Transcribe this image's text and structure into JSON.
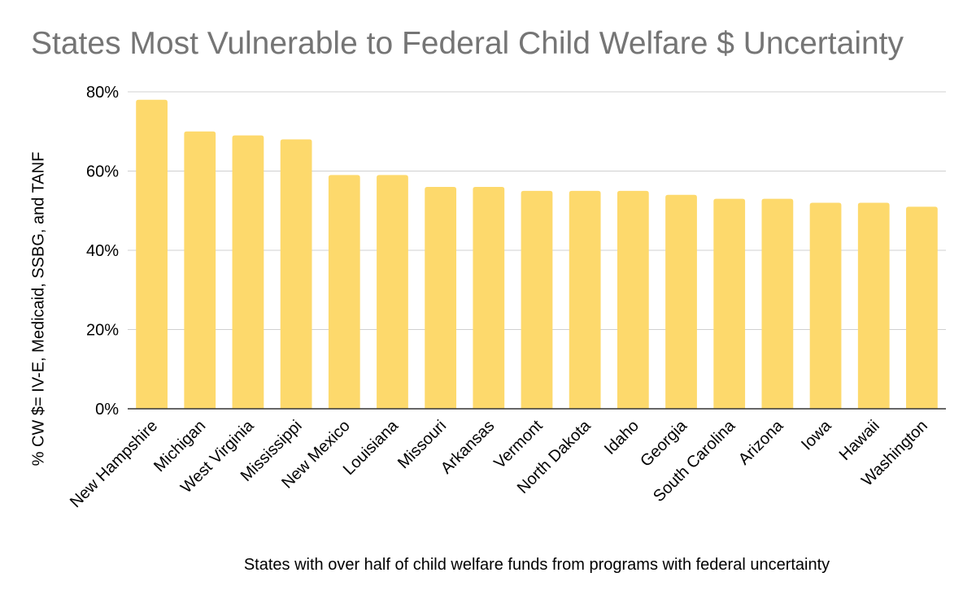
{
  "chart_data": {
    "type": "bar",
    "title": "States Most Vulnerable to Federal Child Welfare $ Uncertainty",
    "xlabel": "States with over half of child welfare funds from programs with federal uncertainty",
    "ylabel": "% CW $= IV-E, Medicaid, SSBG, and TANF",
    "categories": [
      "New Hampshire",
      "Michigan",
      "West Virginia",
      "Mississippi",
      "New Mexico",
      "Louisiana",
      "Missouri",
      "Arkansas",
      "Vermont",
      "North Dakota",
      "Idaho",
      "Georgia",
      "South Carolina",
      "Arizona",
      "Iowa",
      "Hawaii",
      "Washington"
    ],
    "values": [
      78,
      70,
      69,
      68,
      59,
      59,
      56,
      56,
      55,
      55,
      55,
      54,
      53,
      53,
      52,
      52,
      51
    ],
    "ylim": [
      0,
      80
    ],
    "yticks": [
      "0%",
      "20%",
      "40%",
      "60%",
      "80%"
    ],
    "ytick_values": [
      0,
      20,
      40,
      60,
      80
    ],
    "grid": true,
    "bar_color": "#FDD96C",
    "grid_color": "#D0D0D0",
    "axis_color": "#333333"
  }
}
